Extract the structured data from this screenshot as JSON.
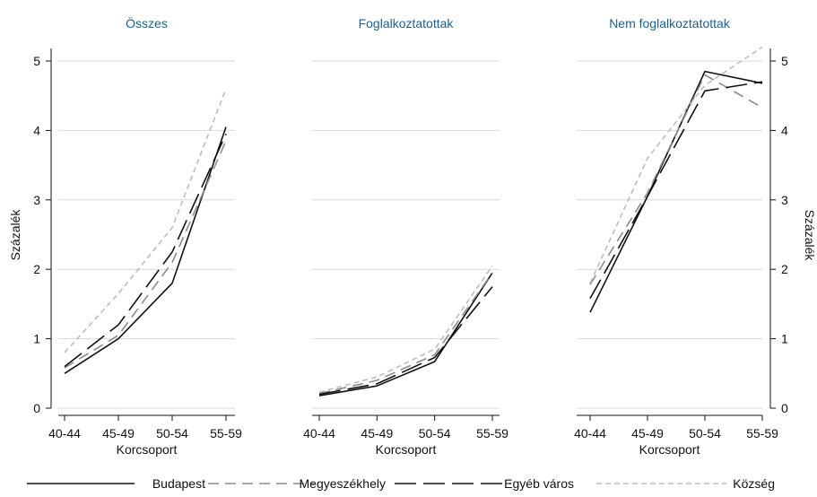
{
  "chart_data": {
    "type": "line",
    "xlabel": "Korcsoport",
    "ylabel": "Százalék",
    "x": [
      "40-44",
      "45-49",
      "50-54",
      "55-59"
    ],
    "ylim": [
      0,
      5
    ],
    "yticks": [
      0,
      1,
      2,
      3,
      4,
      5
    ],
    "grid": true,
    "legend_position": "bottom",
    "legend": [
      {
        "name": "Budapest",
        "color": "#111111",
        "dash": "solid"
      },
      {
        "name": "Megyeszékhely",
        "color": "#8c8c8c",
        "dash": "dashed"
      },
      {
        "name": "Egyéb város",
        "color": "#111111",
        "dash": "longdash"
      },
      {
        "name": "Község",
        "color": "#bdbdbd",
        "dash": "shortdash"
      }
    ],
    "panels": [
      {
        "title": "Összes",
        "series": [
          {
            "name": "Budapest",
            "values": [
              0.5,
              1.0,
              1.8,
              4.05
            ]
          },
          {
            "name": "Megyeszékhely",
            "values": [
              0.58,
              1.05,
              2.1,
              3.85
            ]
          },
          {
            "name": "Egyéb város",
            "values": [
              0.6,
              1.2,
              2.25,
              3.95
            ]
          },
          {
            "name": "Község",
            "values": [
              0.8,
              1.65,
              2.6,
              4.6
            ]
          }
        ]
      },
      {
        "title": "Foglalkoztatottak",
        "series": [
          {
            "name": "Budapest",
            "values": [
              0.18,
              0.32,
              0.67,
              1.95
            ]
          },
          {
            "name": "Megyeszékhely",
            "values": [
              0.21,
              0.4,
              0.77,
              1.95
            ]
          },
          {
            "name": "Egyéb város",
            "values": [
              0.2,
              0.35,
              0.73,
              1.75
            ]
          },
          {
            "name": "Község",
            "values": [
              0.23,
              0.45,
              0.85,
              2.05
            ]
          }
        ]
      },
      {
        "title": "Nem foglalkoztatottak",
        "series": [
          {
            "name": "Budapest",
            "values": [
              1.38,
              3.05,
              4.85,
              4.68
            ]
          },
          {
            "name": "Megyeszékhely",
            "values": [
              1.78,
              3.1,
              4.8,
              4.33
            ]
          },
          {
            "name": "Egyéb város",
            "values": [
              1.58,
              3.05,
              4.57,
              4.7
            ]
          },
          {
            "name": "Község",
            "values": [
              1.8,
              3.6,
              4.65,
              5.2
            ]
          }
        ]
      }
    ]
  }
}
